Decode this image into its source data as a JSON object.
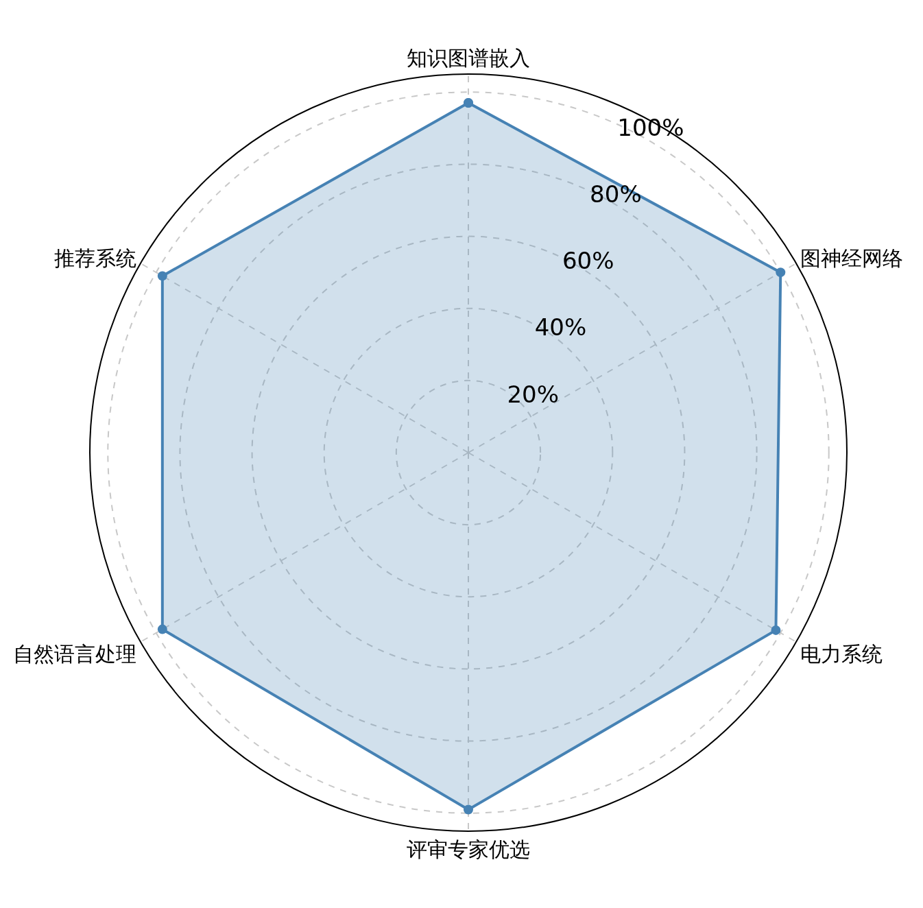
{
  "chart_data": {
    "type": "radar",
    "categories": [
      "知识图谱嵌入",
      "图神经网络",
      "电力系统",
      "评审专家优选",
      "自然语言处理",
      "推荐系统"
    ],
    "series": [
      {
        "color": "#4682b4",
        "values": [
          97,
          100,
          98.5,
          99,
          98,
          98
        ]
      }
    ],
    "ylim": [
      0,
      105
    ],
    "yticks": [
      {
        "value": 20,
        "label": "20%"
      },
      {
        "value": 40,
        "label": "40%"
      },
      {
        "value": 60,
        "label": "60%"
      },
      {
        "value": 80,
        "label": "80%"
      },
      {
        "value": 100,
        "label": "100%"
      }
    ],
    "grid": true,
    "marker": "circle",
    "line_style": "solid"
  }
}
